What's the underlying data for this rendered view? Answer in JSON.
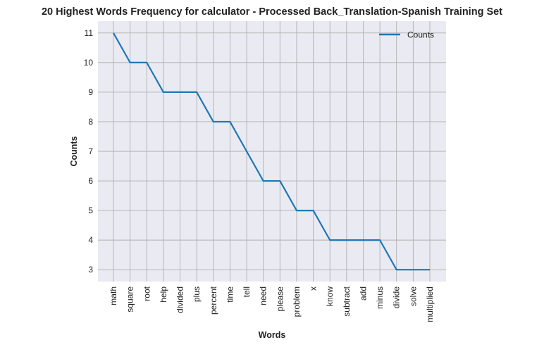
{
  "chart_data": {
    "type": "line",
    "title": "20 Highest Words Frequency for calculator - Processed Back_Translation-Spanish Training Set",
    "xlabel": "Words",
    "ylabel": "Counts",
    "categories": [
      "math",
      "square",
      "root",
      "help",
      "divided",
      "plus",
      "percent",
      "time",
      "tell",
      "need",
      "please",
      "problem",
      "x",
      "know",
      "subtract",
      "add",
      "minus",
      "divide",
      "solve",
      "multiplied"
    ],
    "series": [
      {
        "name": "Counts",
        "values": [
          11,
          10,
          10,
          9,
          9,
          9,
          8,
          8,
          7,
          6,
          6,
          5,
          5,
          4,
          4,
          4,
          4,
          3,
          3,
          3
        ]
      }
    ],
    "yticks": [
      3,
      4,
      5,
      6,
      7,
      8,
      9,
      10,
      11
    ],
    "ylim": [
      2.6,
      11.4
    ],
    "grid": true,
    "legend_position": "top-right",
    "colors": {
      "line": "#1f77b4",
      "plot_bg": "#eaeaf2",
      "grid": "#b0b0b0"
    }
  }
}
